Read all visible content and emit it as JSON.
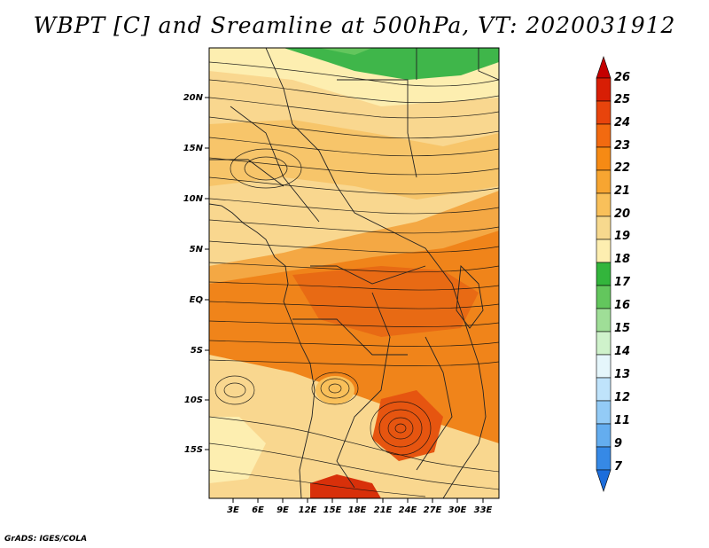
{
  "title": "WBPT [C] and Sreamline at 500hPa, VT: 2020031912",
  "credit": "GrADS: IGES/COLA",
  "map": {
    "lat_labels": [
      "20N",
      "15N",
      "10N",
      "5N",
      "EQ",
      "5S",
      "10S",
      "15S"
    ],
    "lon_labels": [
      "3E",
      "6E",
      "9E",
      "12E",
      "15E",
      "18E",
      "21E",
      "24E",
      "27E",
      "30E",
      "33E"
    ]
  },
  "colorbar": {
    "labels": [
      "26",
      "25",
      "24",
      "23",
      "22",
      "21",
      "20",
      "19",
      "18",
      "17",
      "16",
      "15",
      "14",
      "13",
      "12",
      "11",
      "9",
      "7"
    ],
    "colors": [
      "#c40000",
      "#d81e05",
      "#e8440c",
      "#f26a10",
      "#f68a14",
      "#f7a531",
      "#f9c05a",
      "#f7d98e",
      "#fdeeb0",
      "#33b53c",
      "#63c65d",
      "#9fde97",
      "#cff2cb",
      "#e5f6fb",
      "#bfe3fb",
      "#93cbf6",
      "#64adef",
      "#3689e6",
      "#1c6ddb"
    ]
  },
  "colors": {
    "ocean": "#f8dc98",
    "warm": "#f0841a",
    "hot": "#e65510",
    "green": "#3fb64a"
  }
}
